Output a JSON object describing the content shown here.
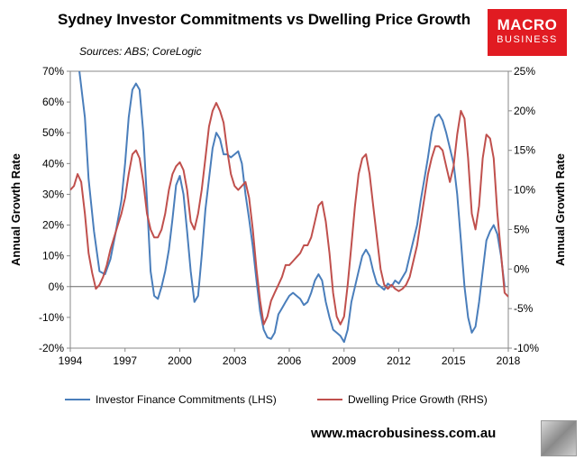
{
  "header": {
    "title": "Sydney Investor Commitments vs Dwelling Price Growth",
    "sources": "Sources: ABS; CoreLogic"
  },
  "logo": {
    "line1": "MACRO",
    "line2": "BUSINESS",
    "color": "#e11b22"
  },
  "footer": {
    "website": "www.macrobusiness.com.au"
  },
  "chart_data": {
    "type": "line",
    "title": "Sydney Investor Commitments vs Dwelling Price Growth",
    "xlabel": "",
    "ylabel_left": "Annual Growth Rate",
    "ylabel_right": "Annual Growth Rate",
    "xlim": [
      1994,
      2018
    ],
    "xticks": [
      1994,
      1997,
      2000,
      2003,
      2006,
      2009,
      2012,
      2015,
      2018
    ],
    "ylim_left": [
      -20,
      70
    ],
    "yticks_left": [
      -20,
      -10,
      0,
      10,
      20,
      30,
      40,
      50,
      60,
      70
    ],
    "ytick_labels_left": [
      "-20%",
      "-10%",
      "0%",
      "10%",
      "20%",
      "30%",
      "40%",
      "50%",
      "60%",
      "70%"
    ],
    "ylim_right": [
      -10,
      25
    ],
    "yticks_right": [
      -10,
      -5,
      0,
      5,
      10,
      15,
      20,
      25
    ],
    "ytick_labels_right": [
      "-10%",
      "-5%",
      "0%",
      "5%",
      "10%",
      "15%",
      "20%",
      "25%"
    ],
    "legend_position": "bottom",
    "series": [
      {
        "name": "Investor Finance Commitments (LHS)",
        "axis": "left",
        "color": "#4a7ebb",
        "points": [
          [
            1994.5,
            70
          ],
          [
            1994.8,
            55
          ],
          [
            1995.0,
            35
          ],
          [
            1995.3,
            18
          ],
          [
            1995.6,
            5
          ],
          [
            1995.9,
            4
          ],
          [
            1996.2,
            9
          ],
          [
            1996.5,
            18
          ],
          [
            1996.8,
            28
          ],
          [
            1997.0,
            40
          ],
          [
            1997.2,
            55
          ],
          [
            1997.4,
            64
          ],
          [
            1997.6,
            66
          ],
          [
            1997.8,
            64
          ],
          [
            1998.0,
            50
          ],
          [
            1998.2,
            28
          ],
          [
            1998.4,
            5
          ],
          [
            1998.6,
            -3
          ],
          [
            1998.8,
            -4
          ],
          [
            1999.0,
            0
          ],
          [
            1999.2,
            5
          ],
          [
            1999.4,
            12
          ],
          [
            1999.6,
            22
          ],
          [
            1999.8,
            33
          ],
          [
            2000.0,
            36
          ],
          [
            2000.2,
            30
          ],
          [
            2000.4,
            18
          ],
          [
            2000.6,
            5
          ],
          [
            2000.8,
            -5
          ],
          [
            2001.0,
            -3
          ],
          [
            2001.2,
            10
          ],
          [
            2001.4,
            25
          ],
          [
            2001.6,
            35
          ],
          [
            2001.8,
            45
          ],
          [
            2002.0,
            50
          ],
          [
            2002.2,
            48
          ],
          [
            2002.4,
            43
          ],
          [
            2002.6,
            43
          ],
          [
            2002.8,
            42
          ],
          [
            2003.0,
            43
          ],
          [
            2003.2,
            44
          ],
          [
            2003.4,
            40
          ],
          [
            2003.6,
            30
          ],
          [
            2003.8,
            22
          ],
          [
            2004.0,
            13
          ],
          [
            2004.2,
            2
          ],
          [
            2004.4,
            -8
          ],
          [
            2004.6,
            -14
          ],
          [
            2004.8,
            -16.5
          ],
          [
            2005.0,
            -17
          ],
          [
            2005.2,
            -15
          ],
          [
            2005.4,
            -9
          ],
          [
            2005.6,
            -7
          ],
          [
            2005.8,
            -5
          ],
          [
            2006.0,
            -3
          ],
          [
            2006.2,
            -2
          ],
          [
            2006.4,
            -3
          ],
          [
            2006.6,
            -4
          ],
          [
            2006.8,
            -6
          ],
          [
            2007.0,
            -5
          ],
          [
            2007.2,
            -2
          ],
          [
            2007.4,
            2
          ],
          [
            2007.6,
            4
          ],
          [
            2007.8,
            2
          ],
          [
            2008.0,
            -5
          ],
          [
            2008.2,
            -10
          ],
          [
            2008.4,
            -14
          ],
          [
            2008.6,
            -15
          ],
          [
            2008.8,
            -16
          ],
          [
            2009.0,
            -18
          ],
          [
            2009.2,
            -14
          ],
          [
            2009.4,
            -5
          ],
          [
            2009.6,
            0
          ],
          [
            2009.8,
            5
          ],
          [
            2010.0,
            10
          ],
          [
            2010.2,
            12
          ],
          [
            2010.4,
            10
          ],
          [
            2010.6,
            5
          ],
          [
            2010.8,
            1
          ],
          [
            2011.0,
            0
          ],
          [
            2011.2,
            -1
          ],
          [
            2011.4,
            1
          ],
          [
            2011.6,
            0
          ],
          [
            2011.8,
            2
          ],
          [
            2012.0,
            1
          ],
          [
            2012.2,
            3
          ],
          [
            2012.4,
            5
          ],
          [
            2012.6,
            10
          ],
          [
            2012.8,
            15
          ],
          [
            2013.0,
            20
          ],
          [
            2013.2,
            28
          ],
          [
            2013.4,
            35
          ],
          [
            2013.6,
            42
          ],
          [
            2013.8,
            50
          ],
          [
            2014.0,
            55
          ],
          [
            2014.2,
            56
          ],
          [
            2014.4,
            54
          ],
          [
            2014.6,
            50
          ],
          [
            2014.8,
            45
          ],
          [
            2015.0,
            40
          ],
          [
            2015.2,
            30
          ],
          [
            2015.4,
            15
          ],
          [
            2015.6,
            0
          ],
          [
            2015.8,
            -10
          ],
          [
            2016.0,
            -15
          ],
          [
            2016.2,
            -13
          ],
          [
            2016.4,
            -5
          ],
          [
            2016.6,
            5
          ],
          [
            2016.8,
            15
          ],
          [
            2017.0,
            18
          ],
          [
            2017.2,
            20
          ],
          [
            2017.4,
            17
          ],
          [
            2017.6,
            10
          ],
          [
            2017.8,
            0
          ]
        ]
      },
      {
        "name": "Dwelling Price Growth (RHS)",
        "axis": "right",
        "color": "#c0504d",
        "points": [
          [
            1994.0,
            10
          ],
          [
            1994.2,
            10.5
          ],
          [
            1994.4,
            12
          ],
          [
            1994.6,
            11
          ],
          [
            1994.8,
            7
          ],
          [
            1995.0,
            2
          ],
          [
            1995.2,
            -0.5
          ],
          [
            1995.4,
            -2.5
          ],
          [
            1995.6,
            -2
          ],
          [
            1995.8,
            -1
          ],
          [
            1996.0,
            0.5
          ],
          [
            1996.2,
            2.5
          ],
          [
            1996.4,
            4
          ],
          [
            1996.6,
            5.5
          ],
          [
            1996.8,
            7
          ],
          [
            1997.0,
            9
          ],
          [
            1997.2,
            12
          ],
          [
            1997.4,
            14.5
          ],
          [
            1997.6,
            15
          ],
          [
            1997.8,
            14
          ],
          [
            1998.0,
            11
          ],
          [
            1998.2,
            7
          ],
          [
            1998.4,
            5
          ],
          [
            1998.6,
            4
          ],
          [
            1998.8,
            4
          ],
          [
            1999.0,
            5
          ],
          [
            1999.2,
            7
          ],
          [
            1999.4,
            10
          ],
          [
            1999.6,
            12
          ],
          [
            1999.8,
            13
          ],
          [
            2000.0,
            13.5
          ],
          [
            2000.2,
            12.5
          ],
          [
            2000.4,
            10
          ],
          [
            2000.6,
            6
          ],
          [
            2000.8,
            5
          ],
          [
            2001.0,
            7
          ],
          [
            2001.2,
            10
          ],
          [
            2001.4,
            14
          ],
          [
            2001.6,
            18
          ],
          [
            2001.8,
            20
          ],
          [
            2002.0,
            21
          ],
          [
            2002.2,
            20
          ],
          [
            2002.4,
            18.5
          ],
          [
            2002.6,
            15
          ],
          [
            2002.8,
            12
          ],
          [
            2003.0,
            10.5
          ],
          [
            2003.2,
            10
          ],
          [
            2003.4,
            10.5
          ],
          [
            2003.6,
            11
          ],
          [
            2003.8,
            9
          ],
          [
            2004.0,
            5
          ],
          [
            2004.2,
            0
          ],
          [
            2004.4,
            -4
          ],
          [
            2004.6,
            -7
          ],
          [
            2004.8,
            -6
          ],
          [
            2005.0,
            -4
          ],
          [
            2005.2,
            -3
          ],
          [
            2005.4,
            -2
          ],
          [
            2005.6,
            -1
          ],
          [
            2005.8,
            0.5
          ],
          [
            2006.0,
            0.5
          ],
          [
            2006.2,
            1
          ],
          [
            2006.4,
            1.5
          ],
          [
            2006.6,
            2
          ],
          [
            2006.8,
            3
          ],
          [
            2007.0,
            3
          ],
          [
            2007.2,
            4
          ],
          [
            2007.4,
            6
          ],
          [
            2007.6,
            8
          ],
          [
            2007.8,
            8.5
          ],
          [
            2008.0,
            6
          ],
          [
            2008.2,
            2
          ],
          [
            2008.4,
            -3
          ],
          [
            2008.6,
            -6
          ],
          [
            2008.8,
            -7
          ],
          [
            2009.0,
            -6
          ],
          [
            2009.2,
            -2
          ],
          [
            2009.4,
            3
          ],
          [
            2009.6,
            8
          ],
          [
            2009.8,
            12
          ],
          [
            2010.0,
            14
          ],
          [
            2010.2,
            14.5
          ],
          [
            2010.4,
            12
          ],
          [
            2010.6,
            8
          ],
          [
            2010.8,
            4
          ],
          [
            2011.0,
            0
          ],
          [
            2011.2,
            -2
          ],
          [
            2011.4,
            -2.5
          ],
          [
            2011.6,
            -2
          ],
          [
            2011.8,
            -2.5
          ],
          [
            2012.0,
            -2.8
          ],
          [
            2012.2,
            -2.5
          ],
          [
            2012.4,
            -2
          ],
          [
            2012.6,
            -1
          ],
          [
            2012.8,
            1
          ],
          [
            2013.0,
            3
          ],
          [
            2013.2,
            6
          ],
          [
            2013.4,
            9
          ],
          [
            2013.6,
            12
          ],
          [
            2013.8,
            14
          ],
          [
            2014.0,
            15.5
          ],
          [
            2014.2,
            15.5
          ],
          [
            2014.4,
            15
          ],
          [
            2014.6,
            13
          ],
          [
            2014.8,
            11
          ],
          [
            2015.0,
            13
          ],
          [
            2015.2,
            17
          ],
          [
            2015.4,
            20
          ],
          [
            2015.6,
            19
          ],
          [
            2015.8,
            14
          ],
          [
            2016.0,
            7
          ],
          [
            2016.2,
            5
          ],
          [
            2016.4,
            8
          ],
          [
            2016.6,
            14
          ],
          [
            2016.8,
            17
          ],
          [
            2017.0,
            16.5
          ],
          [
            2017.2,
            14
          ],
          [
            2017.4,
            7
          ],
          [
            2017.6,
            2
          ],
          [
            2017.8,
            -3
          ],
          [
            2018.0,
            -3.5
          ]
        ]
      }
    ]
  }
}
